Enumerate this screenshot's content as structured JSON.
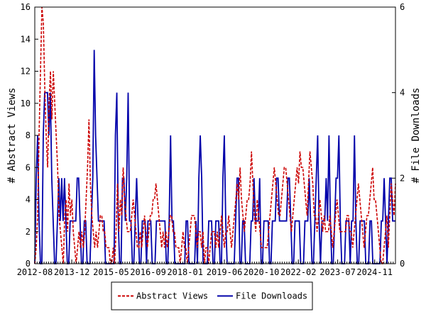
{
  "chart_data": {
    "type": "line",
    "x_start": "2012-08",
    "x_end": "2025-08",
    "x_tick_labels": [
      "2012-08",
      "2013-12",
      "2015-05",
      "2016-09",
      "2018-01",
      "2019-06",
      "2020-10",
      "2022-02",
      "2023-07",
      "2024-11"
    ],
    "y_left": {
      "label": "# Abstract Views",
      "ylim": [
        0,
        16
      ],
      "ticks": [
        0,
        2,
        4,
        6,
        8,
        10,
        12,
        14,
        16
      ]
    },
    "y_right": {
      "label": "# File Downloads",
      "ylim": [
        0,
        6
      ],
      "ticks": [
        0,
        2,
        4,
        6
      ]
    },
    "legend": {
      "position": "bottom-center"
    },
    "series": [
      {
        "name": "Abstract Views",
        "axis": "left",
        "color": "#cc0000",
        "style": "dashed",
        "values": [
          0,
          1,
          3,
          8,
          12,
          16,
          15,
          11,
          8,
          6,
          10,
          12,
          9,
          12,
          10,
          8,
          6,
          3,
          2,
          1,
          0,
          3,
          4,
          2,
          5,
          3,
          4,
          2,
          1,
          0,
          1,
          2,
          1,
          2,
          1,
          2,
          4,
          6,
          9,
          5,
          3,
          2,
          1,
          2,
          1,
          2,
          3,
          3,
          2,
          2,
          1,
          1,
          1,
          0,
          0,
          1,
          0,
          2,
          5,
          2,
          4,
          3,
          6,
          4,
          3,
          2,
          2,
          2,
          3,
          4,
          3,
          2,
          1,
          1,
          2,
          1,
          2,
          3,
          2,
          1,
          2,
          3,
          3,
          4,
          4,
          5,
          4,
          3,
          2,
          1,
          2,
          1,
          2,
          1,
          2,
          3,
          3,
          2,
          2,
          1,
          1,
          1,
          0,
          1,
          2,
          1,
          1,
          0,
          1,
          2,
          3,
          3,
          3,
          2,
          1,
          2,
          2,
          1,
          2,
          0,
          1,
          1,
          0,
          1,
          2,
          2,
          2,
          1,
          2,
          1,
          2,
          3,
          2,
          1,
          2,
          2,
          3,
          2,
          1,
          2,
          3,
          4,
          5,
          4,
          6,
          4,
          3,
          2,
          3,
          4,
          4,
          5,
          7,
          5,
          3,
          2,
          4,
          3,
          2,
          1,
          1,
          1,
          1,
          1,
          2,
          3,
          4,
          5,
          6,
          5,
          4,
          3,
          3,
          4,
          5,
          6,
          6,
          5,
          4,
          3,
          2,
          3,
          4,
          5,
          6,
          5,
          7,
          6,
          6,
          5,
          4,
          3,
          5,
          7,
          6,
          5,
          3,
          3,
          2,
          3,
          4,
          3,
          2,
          3,
          2,
          2,
          2,
          3,
          2,
          1,
          2,
          3,
          4,
          3,
          2,
          2,
          2,
          2,
          2,
          3,
          3,
          2,
          2,
          1,
          2,
          3,
          4,
          5,
          4,
          3,
          2,
          1,
          2,
          3,
          3,
          4,
          5,
          6,
          4,
          4,
          3,
          2,
          1,
          0,
          0,
          1,
          2,
          3,
          1,
          3,
          5,
          4,
          3,
          5
        ]
      },
      {
        "name": "File Downloads",
        "axis": "right",
        "color": "#0000aa",
        "style": "solid",
        "values": [
          0,
          2,
          3,
          1,
          0,
          0,
          3,
          4,
          4,
          4,
          3,
          4,
          2,
          1,
          0,
          0,
          1,
          2,
          1,
          2,
          1,
          2,
          1,
          0,
          0,
          1,
          1,
          1,
          1,
          1,
          2,
          2,
          1,
          0,
          0,
          1,
          1,
          0,
          0,
          0,
          1,
          2,
          5,
          3,
          2,
          1,
          1,
          1,
          1,
          1,
          0,
          0,
          0,
          0,
          0,
          0,
          0,
          3,
          4,
          1,
          0,
          0,
          2,
          2,
          1,
          2,
          4,
          1,
          1,
          0,
          0,
          1,
          2,
          1,
          0,
          0,
          1,
          1,
          1,
          0,
          1,
          1,
          1,
          0,
          0,
          0,
          1,
          1,
          1,
          1,
          1,
          1,
          1,
          0,
          0,
          1,
          3,
          1,
          1,
          0,
          0,
          0,
          0,
          0,
          0,
          0,
          0,
          1,
          1,
          0,
          0,
          0,
          0,
          0,
          1,
          0,
          2,
          3,
          2,
          0,
          0,
          0,
          0,
          1,
          1,
          1,
          0,
          0,
          1,
          1,
          1,
          0,
          0,
          2,
          3,
          1,
          0,
          0,
          0,
          0,
          0,
          0,
          1,
          2,
          2,
          0,
          0,
          1,
          1,
          0,
          0,
          0,
          0,
          1,
          1,
          2,
          1,
          1,
          1,
          2,
          0,
          0,
          1,
          1,
          1,
          1,
          0,
          0,
          1,
          1,
          1,
          2,
          2,
          1,
          1,
          1,
          1,
          1,
          1,
          2,
          2,
          1,
          0,
          0,
          1,
          1,
          1,
          1,
          0,
          0,
          0,
          1,
          1,
          1,
          2,
          1,
          0,
          0,
          1,
          2,
          3,
          1,
          0,
          1,
          1,
          1,
          2,
          1,
          3,
          1,
          0,
          0,
          1,
          2,
          2,
          3,
          1,
          0,
          0,
          0,
          1,
          1,
          1,
          0,
          1,
          1,
          3,
          1,
          0,
          0,
          1,
          1,
          1,
          1,
          0,
          0,
          0,
          1,
          1,
          0,
          0,
          0,
          0,
          0,
          0,
          1,
          1,
          2,
          1,
          0,
          1,
          2,
          2,
          1,
          1,
          1
        ]
      }
    ]
  }
}
